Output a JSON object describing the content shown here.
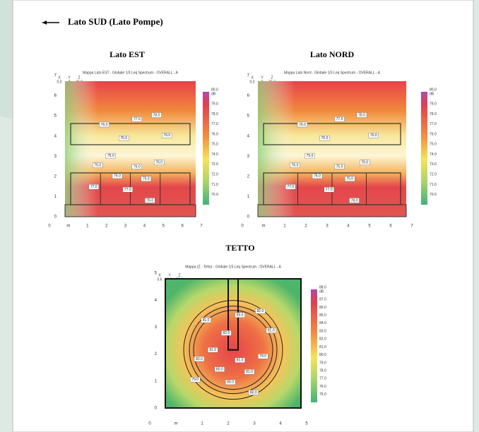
{
  "header": {
    "title": "Lato SUD (Lato Pompe)"
  },
  "panels": [
    {
      "title": "Lato EST",
      "map_title": "Mappa Lato EST - Globale 1/3 Leq Spectrum - OVERALL - A",
      "readout": {
        "labels": [
          "X",
          "Y",
          "Z"
        ],
        "values": [
          "0.3",
          "0",
          "76.9"
        ]
      },
      "colorbar": {
        "unit": "dB",
        "ticks": [
          "80.0",
          "79.0",
          "78.0",
          "77.0",
          "76.0",
          "75.0",
          "74.0",
          "73.0",
          "72.0",
          "71.0",
          "70.0"
        ]
      },
      "y_ticks": [
        "7",
        "6",
        "5",
        "4",
        "3",
        "2",
        "1",
        "0"
      ],
      "x_ticks": [
        "0",
        "m",
        "1",
        "2",
        "3",
        "4",
        "5",
        "6",
        "7"
      ],
      "contour_labels": [
        "76.0",
        "75.0",
        "77.0",
        "78.0",
        "75.0",
        "75.0",
        "76.0",
        "76.0",
        "75.0",
        "77.0",
        "76.0",
        "77.0",
        "76.0",
        "76.0"
      ]
    },
    {
      "title": "Lato NORD",
      "map_title": "Mappa Lato Nord - Globale 1/3 Leq Spectrum - OVERALL - A",
      "readout": {
        "labels": [
          "X",
          "Y",
          "Z"
        ],
        "values": [
          "0.3",
          "0",
          "76.3"
        ]
      },
      "colorbar": {
        "unit": "dB",
        "ticks": [
          "80.0",
          "79.0",
          "78.0",
          "77.0",
          "76.0",
          "75.0",
          "74.0",
          "73.0",
          "72.0",
          "71.0",
          "70.0"
        ]
      },
      "y_ticks": [
        "7",
        "6",
        "5",
        "4",
        "3",
        "2",
        "1",
        "0"
      ],
      "x_ticks": [
        "0",
        "m",
        "1",
        "2",
        "3",
        "4",
        "5",
        "6",
        "7"
      ],
      "contour_labels": [
        "76.0",
        "75.0",
        "77.0",
        "78.0",
        "76.0",
        "75.0",
        "75.0",
        "76.0",
        "75.0",
        "77.0",
        "76.0",
        "77.0",
        "76.0",
        "78.0"
      ]
    },
    {
      "title": "TETTO",
      "map_title": "Mappa (Z - Tetto) - Globale 1/3 Leq Spectrum - OVERALL - A",
      "readout": {
        "labels": [
          "X",
          "Y",
          "Z"
        ],
        "values": [
          "0.6",
          "0.6",
          "79.3"
        ]
      },
      "colorbar": {
        "unit": "dB",
        "ticks": [
          "88.0",
          "87.0",
          "86.0",
          "85.0",
          "84.0",
          "83.0",
          "82.0",
          "81.0",
          "80.0",
          "79.0",
          "78.0",
          "77.0",
          "76.0",
          "75.0"
        ]
      },
      "y_ticks": [
        "5",
        "4",
        "3",
        "2",
        "1",
        "0"
      ],
      "x_ticks": [
        "0",
        "m",
        "1",
        "2",
        "3",
        "4",
        "5"
      ],
      "contour_labels": [
        "81.0",
        "82.0",
        "83.0",
        "82.0",
        "83.0",
        "81.0",
        "81.0",
        "80.0",
        "81.0",
        "80.0",
        "79.0",
        "79.0",
        "81.0",
        "80.0"
      ]
    }
  ]
}
